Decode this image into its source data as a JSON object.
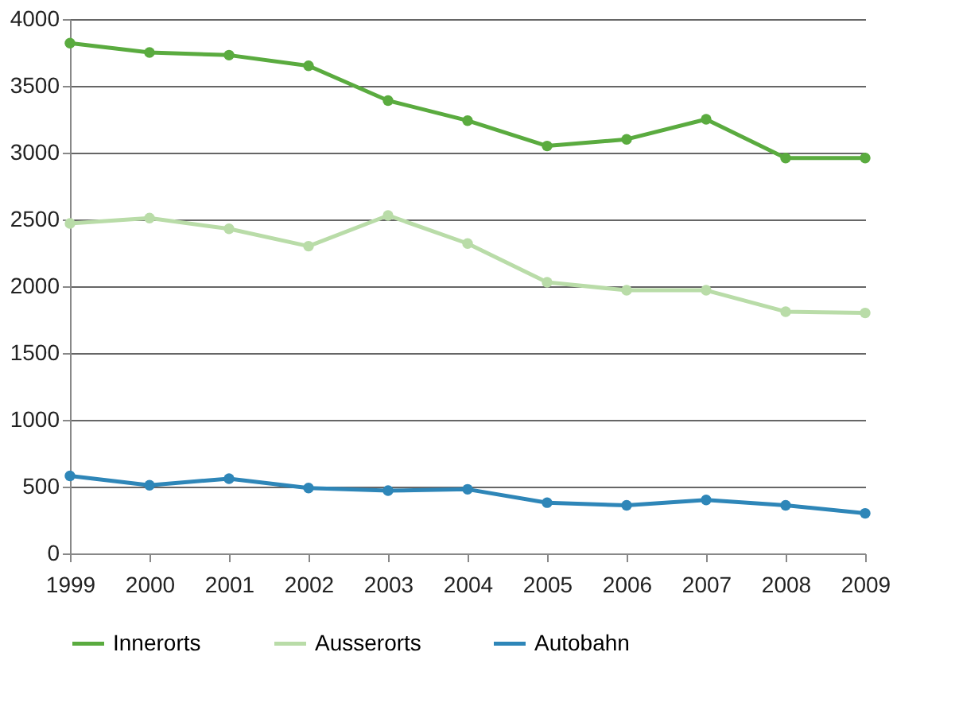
{
  "chart_data": {
    "type": "line",
    "x": [
      1999,
      2000,
      2001,
      2002,
      2003,
      2004,
      2005,
      2006,
      2007,
      2008,
      2009
    ],
    "series": [
      {
        "name": "Innerorts",
        "color": "#5aab3f",
        "values": [
          3820,
          3750,
          3730,
          3650,
          3390,
          3240,
          3050,
          3100,
          3250,
          2960,
          2960
        ]
      },
      {
        "name": "Ausserorts",
        "color": "#b9dca8",
        "values": [
          2470,
          2510,
          2430,
          2300,
          2530,
          2320,
          2030,
          1970,
          1970,
          1810,
          1800
        ]
      },
      {
        "name": "Autobahn",
        "color": "#2e86b8",
        "values": [
          580,
          510,
          560,
          490,
          470,
          480,
          380,
          360,
          400,
          360,
          300
        ]
      }
    ],
    "xlim": [
      1999,
      2009
    ],
    "xticks": [
      1999,
      2000,
      2001,
      2002,
      2003,
      2004,
      2005,
      2006,
      2007,
      2008,
      2009
    ],
    "ylim": [
      0,
      4000
    ],
    "yticks": [
      0,
      500,
      1000,
      1500,
      2000,
      2500,
      3000,
      3500,
      4000
    ],
    "grid": "y",
    "legend": "bottom",
    "marker": "circle",
    "line_style": "solid"
  }
}
